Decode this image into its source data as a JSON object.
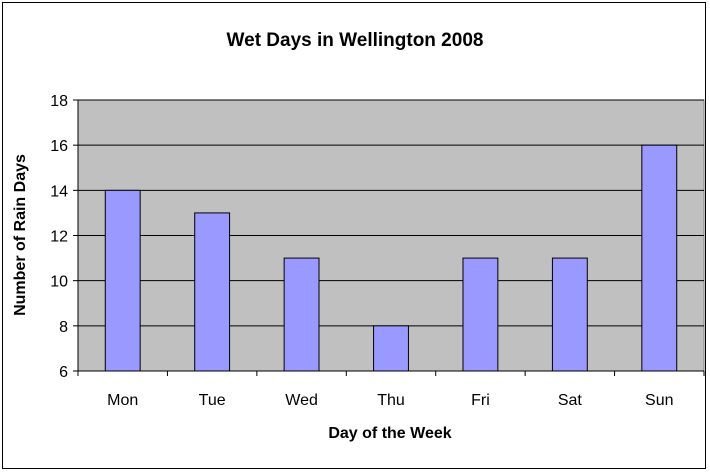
{
  "chart_data": {
    "type": "bar",
    "title": "Wet Days in Wellington 2008",
    "xlabel": "Day of the Week",
    "ylabel": "Number of Rain Days",
    "categories": [
      "Mon",
      "Tue",
      "Wed",
      "Thu",
      "Fri",
      "Sat",
      "Sun"
    ],
    "values": [
      14,
      13,
      11,
      8,
      11,
      11,
      16
    ],
    "ylim": [
      6,
      18
    ],
    "yticks": [
      6,
      8,
      10,
      12,
      14,
      16,
      18
    ],
    "grid": true,
    "legend": "none",
    "colors": {
      "bar_fill": "#9999ff",
      "bar_stroke": "#000000",
      "plot_background": "#c0c0c0",
      "gridline": "#000000"
    }
  }
}
